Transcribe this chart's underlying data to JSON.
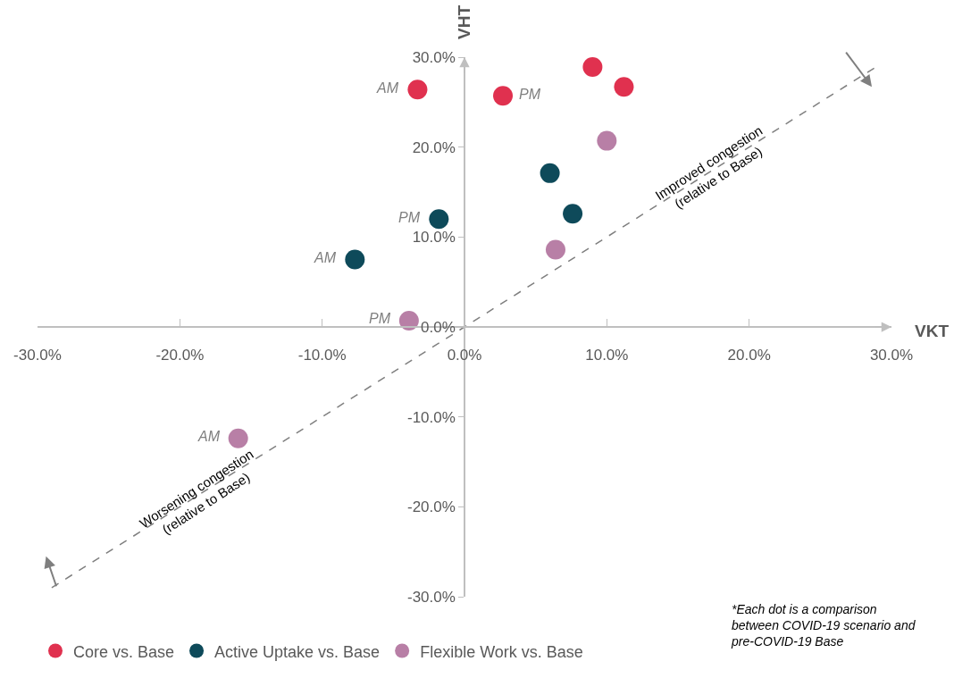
{
  "chart_data": {
    "type": "scatter",
    "xlabel": "VKT",
    "ylabel": "VHT",
    "xlim": [
      -30,
      30
    ],
    "ylim": [
      -30,
      30
    ],
    "xticks": [
      {
        "value": -30,
        "label": "-30.0%"
      },
      {
        "value": -20,
        "label": "-20.0%"
      },
      {
        "value": -10,
        "label": "-10.0%"
      },
      {
        "value": 0,
        "label": "0.0%"
      },
      {
        "value": 10,
        "label": "10.0%"
      },
      {
        "value": 20,
        "label": "20.0%"
      },
      {
        "value": 30,
        "label": "30.0%"
      }
    ],
    "yticks": [
      {
        "value": -30,
        "label": "-30.0%"
      },
      {
        "value": -20,
        "label": "-20.0%"
      },
      {
        "value": -10,
        "label": "-10.0%"
      },
      {
        "value": 0,
        "label": "0.0%"
      },
      {
        "value": 10,
        "label": "10.0%"
      },
      {
        "value": 20,
        "label": "20.0%"
      },
      {
        "value": 30,
        "label": "30.0%"
      }
    ],
    "legend": "bottom",
    "marker": "circle",
    "series": [
      {
        "name": "Core vs. Base",
        "color": "#e0314f",
        "x": [
          -3.3,
          2.7,
          9.0,
          11.2
        ],
        "values": [
          26.4,
          25.7,
          28.9,
          26.7
        ]
      },
      {
        "name": "Active Uptake vs. Base",
        "color": "#0e4a5a",
        "x": [
          -7.7,
          -1.8,
          6.0,
          7.6
        ],
        "values": [
          7.5,
          12.0,
          17.1,
          12.6
        ]
      },
      {
        "name": "Flexible Work vs. Base",
        "color": "#b87fa6",
        "x": [
          10.0,
          6.4,
          -3.9,
          -15.9
        ],
        "values": [
          20.7,
          8.6,
          0.7,
          -12.4
        ]
      },
      {
        "type": "line",
        "color": "#7f7f7f",
        "line_style": "dashed",
        "marker": "none",
        "x": [
          -29,
          29
        ],
        "values": [
          -29,
          29
        ]
      }
    ],
    "annotations": [
      {
        "text": "AM",
        "x": -3.3,
        "y": 26.4
      },
      {
        "text": "PM",
        "x": 2.7,
        "y": 25.7
      },
      {
        "text": "AM",
        "x": -7.7,
        "y": 7.5
      },
      {
        "text": "PM",
        "x": -1.8,
        "y": 12.0
      },
      {
        "text": "PM",
        "x": -3.9,
        "y": 0.7
      },
      {
        "text": "AM",
        "x": -15.9,
        "y": -12.4
      },
      "Improved congestion\n(relative to Base)",
      "Worsening congestion\n(relative to Base)",
      "*Each dot is a comparison\nbetween COVID-19 scenario and\npre-COVID-19 Base"
    ]
  }
}
